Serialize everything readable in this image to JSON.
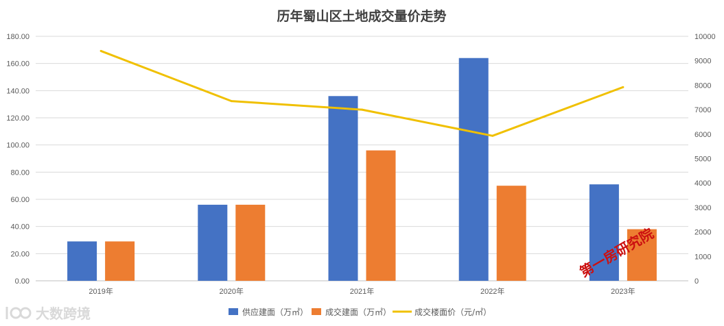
{
  "chart_data": {
    "type": "bar",
    "title": "历年蜀山区土地成交量价走势",
    "categories": [
      "2019年",
      "2020年",
      "2021年",
      "2022年",
      "2023年"
    ],
    "y_left": {
      "ylim": [
        0,
        180
      ],
      "ticks": [
        "0.00",
        "20.00",
        "40.00",
        "60.00",
        "80.00",
        "100.00",
        "120.00",
        "140.00",
        "160.00",
        "180.00"
      ]
    },
    "y_right": {
      "ylim": [
        0,
        10000
      ],
      "ticks": [
        "0",
        "1000",
        "2000",
        "3000",
        "4000",
        "5000",
        "6000",
        "7000",
        "8000",
        "9000",
        "10000"
      ]
    },
    "series": [
      {
        "name": "供应建面（万㎡）",
        "type": "bar",
        "axis": "left",
        "color": "#4472c4",
        "values": [
          29,
          56,
          136,
          164,
          71
        ]
      },
      {
        "name": "成交建面（万㎡）",
        "type": "bar",
        "axis": "left",
        "color": "#ed7d31",
        "values": [
          29,
          56,
          96,
          70,
          38
        ]
      },
      {
        "name": "成交楼面价（元/㎡）",
        "type": "line",
        "axis": "right",
        "color": "#f0c000",
        "values": [
          9400,
          7350,
          7000,
          5930,
          7920
        ]
      }
    ],
    "grid": true,
    "legend_position": "bottom"
  },
  "watermark": "第一房研究院",
  "brand": {
    "icon": "logo-mark-icon",
    "text": "大数跨境"
  }
}
